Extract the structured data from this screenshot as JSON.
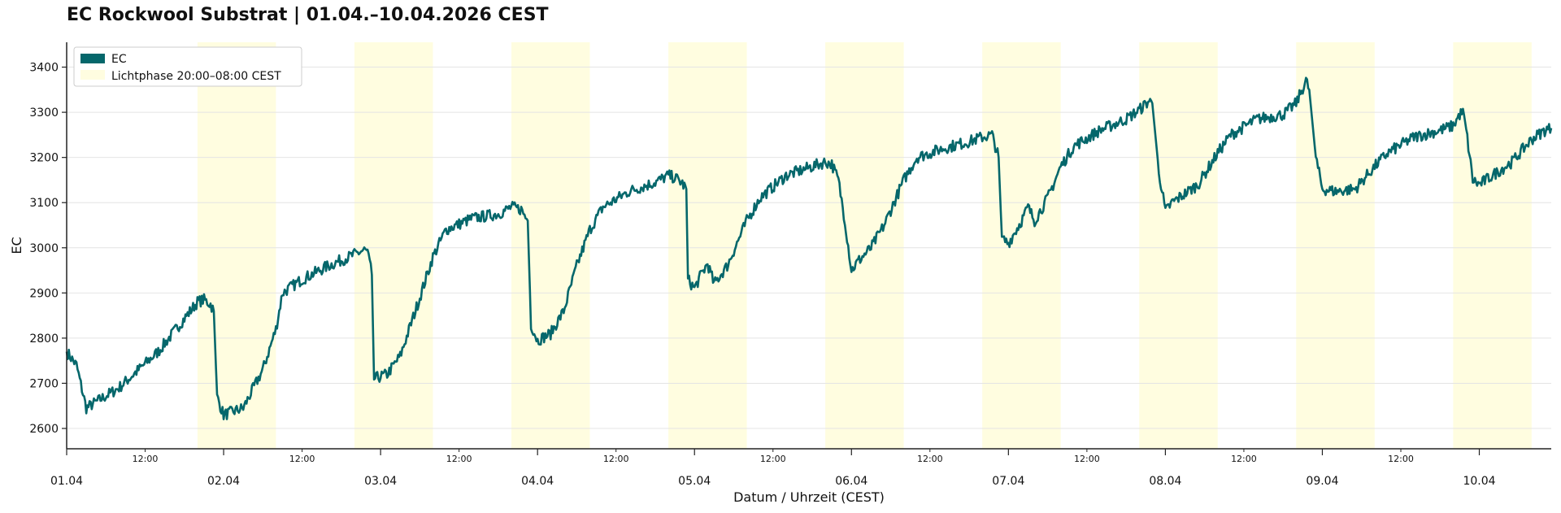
{
  "chart_data": {
    "type": "line",
    "title": "EC Rockwool Substrat | 01.04.–10.04.2026 CEST",
    "xlabel": "Datum / Uhrzeit (CEST)",
    "ylabel": "EC",
    "ylim": [
      2555,
      3455
    ],
    "xlim_hours": [
      0,
      227
    ],
    "y_ticks": [
      2600,
      2700,
      2800,
      2900,
      3000,
      3100,
      3200,
      3300,
      3400
    ],
    "x_major_ticks": [
      "01.04",
      "02.04",
      "03.04",
      "04.04",
      "05.04",
      "06.04",
      "07.04",
      "08.04",
      "09.04",
      "10.04"
    ],
    "x_minor_tick_label": "12:00",
    "grid": "horizontal",
    "legend": {
      "placement": "top-left",
      "entries": [
        "EC",
        "Lichtphase 20:00–08:00 CEST"
      ]
    },
    "light_phases": [
      {
        "start": "01.04 20:00",
        "end": "02.04 08:00"
      },
      {
        "start": "02.04 20:00",
        "end": "03.04 08:00"
      },
      {
        "start": "03.04 20:00",
        "end": "04.04 08:00"
      },
      {
        "start": "04.04 20:00",
        "end": "05.04 08:00"
      },
      {
        "start": "05.04 20:00",
        "end": "06.04 08:00"
      },
      {
        "start": "06.04 20:00",
        "end": "07.04 08:00"
      },
      {
        "start": "07.04 20:00",
        "end": "08.04 08:00"
      },
      {
        "start": "08.04 20:00",
        "end": "09.04 08:00"
      },
      {
        "start": "09.04 20:00",
        "end": "10.04 08:00"
      }
    ],
    "series": [
      {
        "name": "EC",
        "color": "#05676b",
        "points": [
          [
            "01.04 00:00",
            2770
          ],
          [
            "01.04 01:30",
            2740
          ],
          [
            "01.04 03:00",
            2645
          ],
          [
            "01.04 08:00",
            2690
          ],
          [
            "01.04 14:00",
            2770
          ],
          [
            "01.04 20:00",
            2880
          ],
          [
            "01.04 21:00",
            2885
          ],
          [
            "01.04 22:00",
            2875
          ],
          [
            "01.04 22:30",
            2860
          ],
          [
            "01.04 23:00",
            2670
          ],
          [
            "02.04 00:00",
            2630
          ],
          [
            "02.04 03:00",
            2645
          ],
          [
            "02.04 06:00",
            2730
          ],
          [
            "02.04 08:00",
            2820
          ],
          [
            "02.04 09:00",
            2900
          ],
          [
            "02.04 12:00",
            2930
          ],
          [
            "02.04 16:00",
            2960
          ],
          [
            "02.04 20:00",
            2985
          ],
          [
            "02.04 21:30",
            2995
          ],
          [
            "02.04 22:00",
            2990
          ],
          [
            "02.04 22:40",
            2940
          ],
          [
            "02.04 23:00",
            2710
          ],
          [
            "03.04 01:00",
            2720
          ],
          [
            "03.04 03:00",
            2760
          ],
          [
            "03.04 06:00",
            2890
          ],
          [
            "03.04 08:00",
            2980
          ],
          [
            "03.04 10:00",
            3040
          ],
          [
            "03.04 14:00",
            3065
          ],
          [
            "03.04 18:00",
            3075
          ],
          [
            "03.04 20:00",
            3090
          ],
          [
            "03.04 21:30",
            3085
          ],
          [
            "03.04 22:30",
            3060
          ],
          [
            "03.04 23:00",
            2830
          ],
          [
            "04.04 00:00",
            2795
          ],
          [
            "04.04 02:00",
            2810
          ],
          [
            "04.04 04:00",
            2860
          ],
          [
            "04.04 06:00",
            2960
          ],
          [
            "04.04 08:00",
            3040
          ],
          [
            "04.04 10:00",
            3090
          ],
          [
            "04.04 14:00",
            3125
          ],
          [
            "04.04 18:00",
            3145
          ],
          [
            "04.04 20:00",
            3160
          ],
          [
            "04.04 21:00",
            3155
          ],
          [
            "04.04 22:00",
            3145
          ],
          [
            "04.04 22:45",
            3130
          ],
          [
            "04.04 23:00",
            2930
          ],
          [
            "05.04 00:00",
            2910
          ],
          [
            "05.04 01:00",
            2940
          ],
          [
            "05.04 02:00",
            2965
          ],
          [
            "05.04 03:00",
            2920
          ],
          [
            "05.04 05:00",
            2960
          ],
          [
            "05.04 08:00",
            3060
          ],
          [
            "05.04 10:00",
            3110
          ],
          [
            "05.04 14:00",
            3160
          ],
          [
            "05.04 18:00",
            3180
          ],
          [
            "05.04 20:00",
            3190
          ],
          [
            "05.04 21:00",
            3185
          ],
          [
            "05.04 22:00",
            3150
          ],
          [
            "05.04 23:00",
            3060
          ],
          [
            "06.04 00:00",
            2950
          ],
          [
            "06.04 01:00",
            2970
          ],
          [
            "06.04 03:00",
            3000
          ],
          [
            "06.04 05:00",
            3050
          ],
          [
            "06.04 08:00",
            3150
          ],
          [
            "06.04 10:00",
            3200
          ],
          [
            "06.04 14:00",
            3220
          ],
          [
            "06.04 18:00",
            3235
          ],
          [
            "06.04 20:00",
            3245
          ],
          [
            "06.04 21:30",
            3250
          ],
          [
            "06.04 22:30",
            3200
          ],
          [
            "06.04 23:00",
            3020
          ],
          [
            "07.04 00:00",
            3010
          ],
          [
            "07.04 02:00",
            3060
          ],
          [
            "07.04 03:00",
            3090
          ],
          [
            "07.04 04:00",
            3060
          ],
          [
            "07.04 06:00",
            3110
          ],
          [
            "07.04 08:00",
            3180
          ],
          [
            "07.04 10:00",
            3225
          ],
          [
            "07.04 14:00",
            3260
          ],
          [
            "07.04 18:00",
            3285
          ],
          [
            "07.04 20:00",
            3305
          ],
          [
            "07.04 21:30",
            3325
          ],
          [
            "07.04 22:00",
            3320
          ],
          [
            "07.04 23:00",
            3170
          ],
          [
            "08.04 00:00",
            3080
          ],
          [
            "08.04 01:00",
            3100
          ],
          [
            "08.04 03:00",
            3120
          ],
          [
            "08.04 05:00",
            3140
          ],
          [
            "08.04 08:00",
            3210
          ],
          [
            "08.04 10:00",
            3250
          ],
          [
            "08.04 14:00",
            3285
          ],
          [
            "08.04 18:00",
            3295
          ],
          [
            "08.04 20:00",
            3320
          ],
          [
            "08.04 21:30",
            3370
          ],
          [
            "08.04 22:00",
            3350
          ],
          [
            "08.04 23:00",
            3200
          ],
          [
            "09.04 00:00",
            3130
          ],
          [
            "09.04 02:00",
            3125
          ],
          [
            "09.04 05:00",
            3130
          ],
          [
            "09.04 08:00",
            3180
          ],
          [
            "09.04 10:00",
            3210
          ],
          [
            "09.04 14:00",
            3245
          ],
          [
            "09.04 18:00",
            3260
          ],
          [
            "09.04 20:00",
            3270
          ],
          [
            "09.04 21:00",
            3295
          ],
          [
            "09.04 21:30",
            3300
          ],
          [
            "09.04 22:00",
            3260
          ],
          [
            "09.04 23:00",
            3150
          ],
          [
            "10.04 00:00",
            3140
          ],
          [
            "10.04 02:00",
            3160
          ],
          [
            "10.04 05:00",
            3190
          ],
          [
            "10.04 08:00",
            3240
          ],
          [
            "10.04 10:00",
            3260
          ],
          [
            "10.04 11:00",
            3265
          ]
        ]
      }
    ]
  }
}
